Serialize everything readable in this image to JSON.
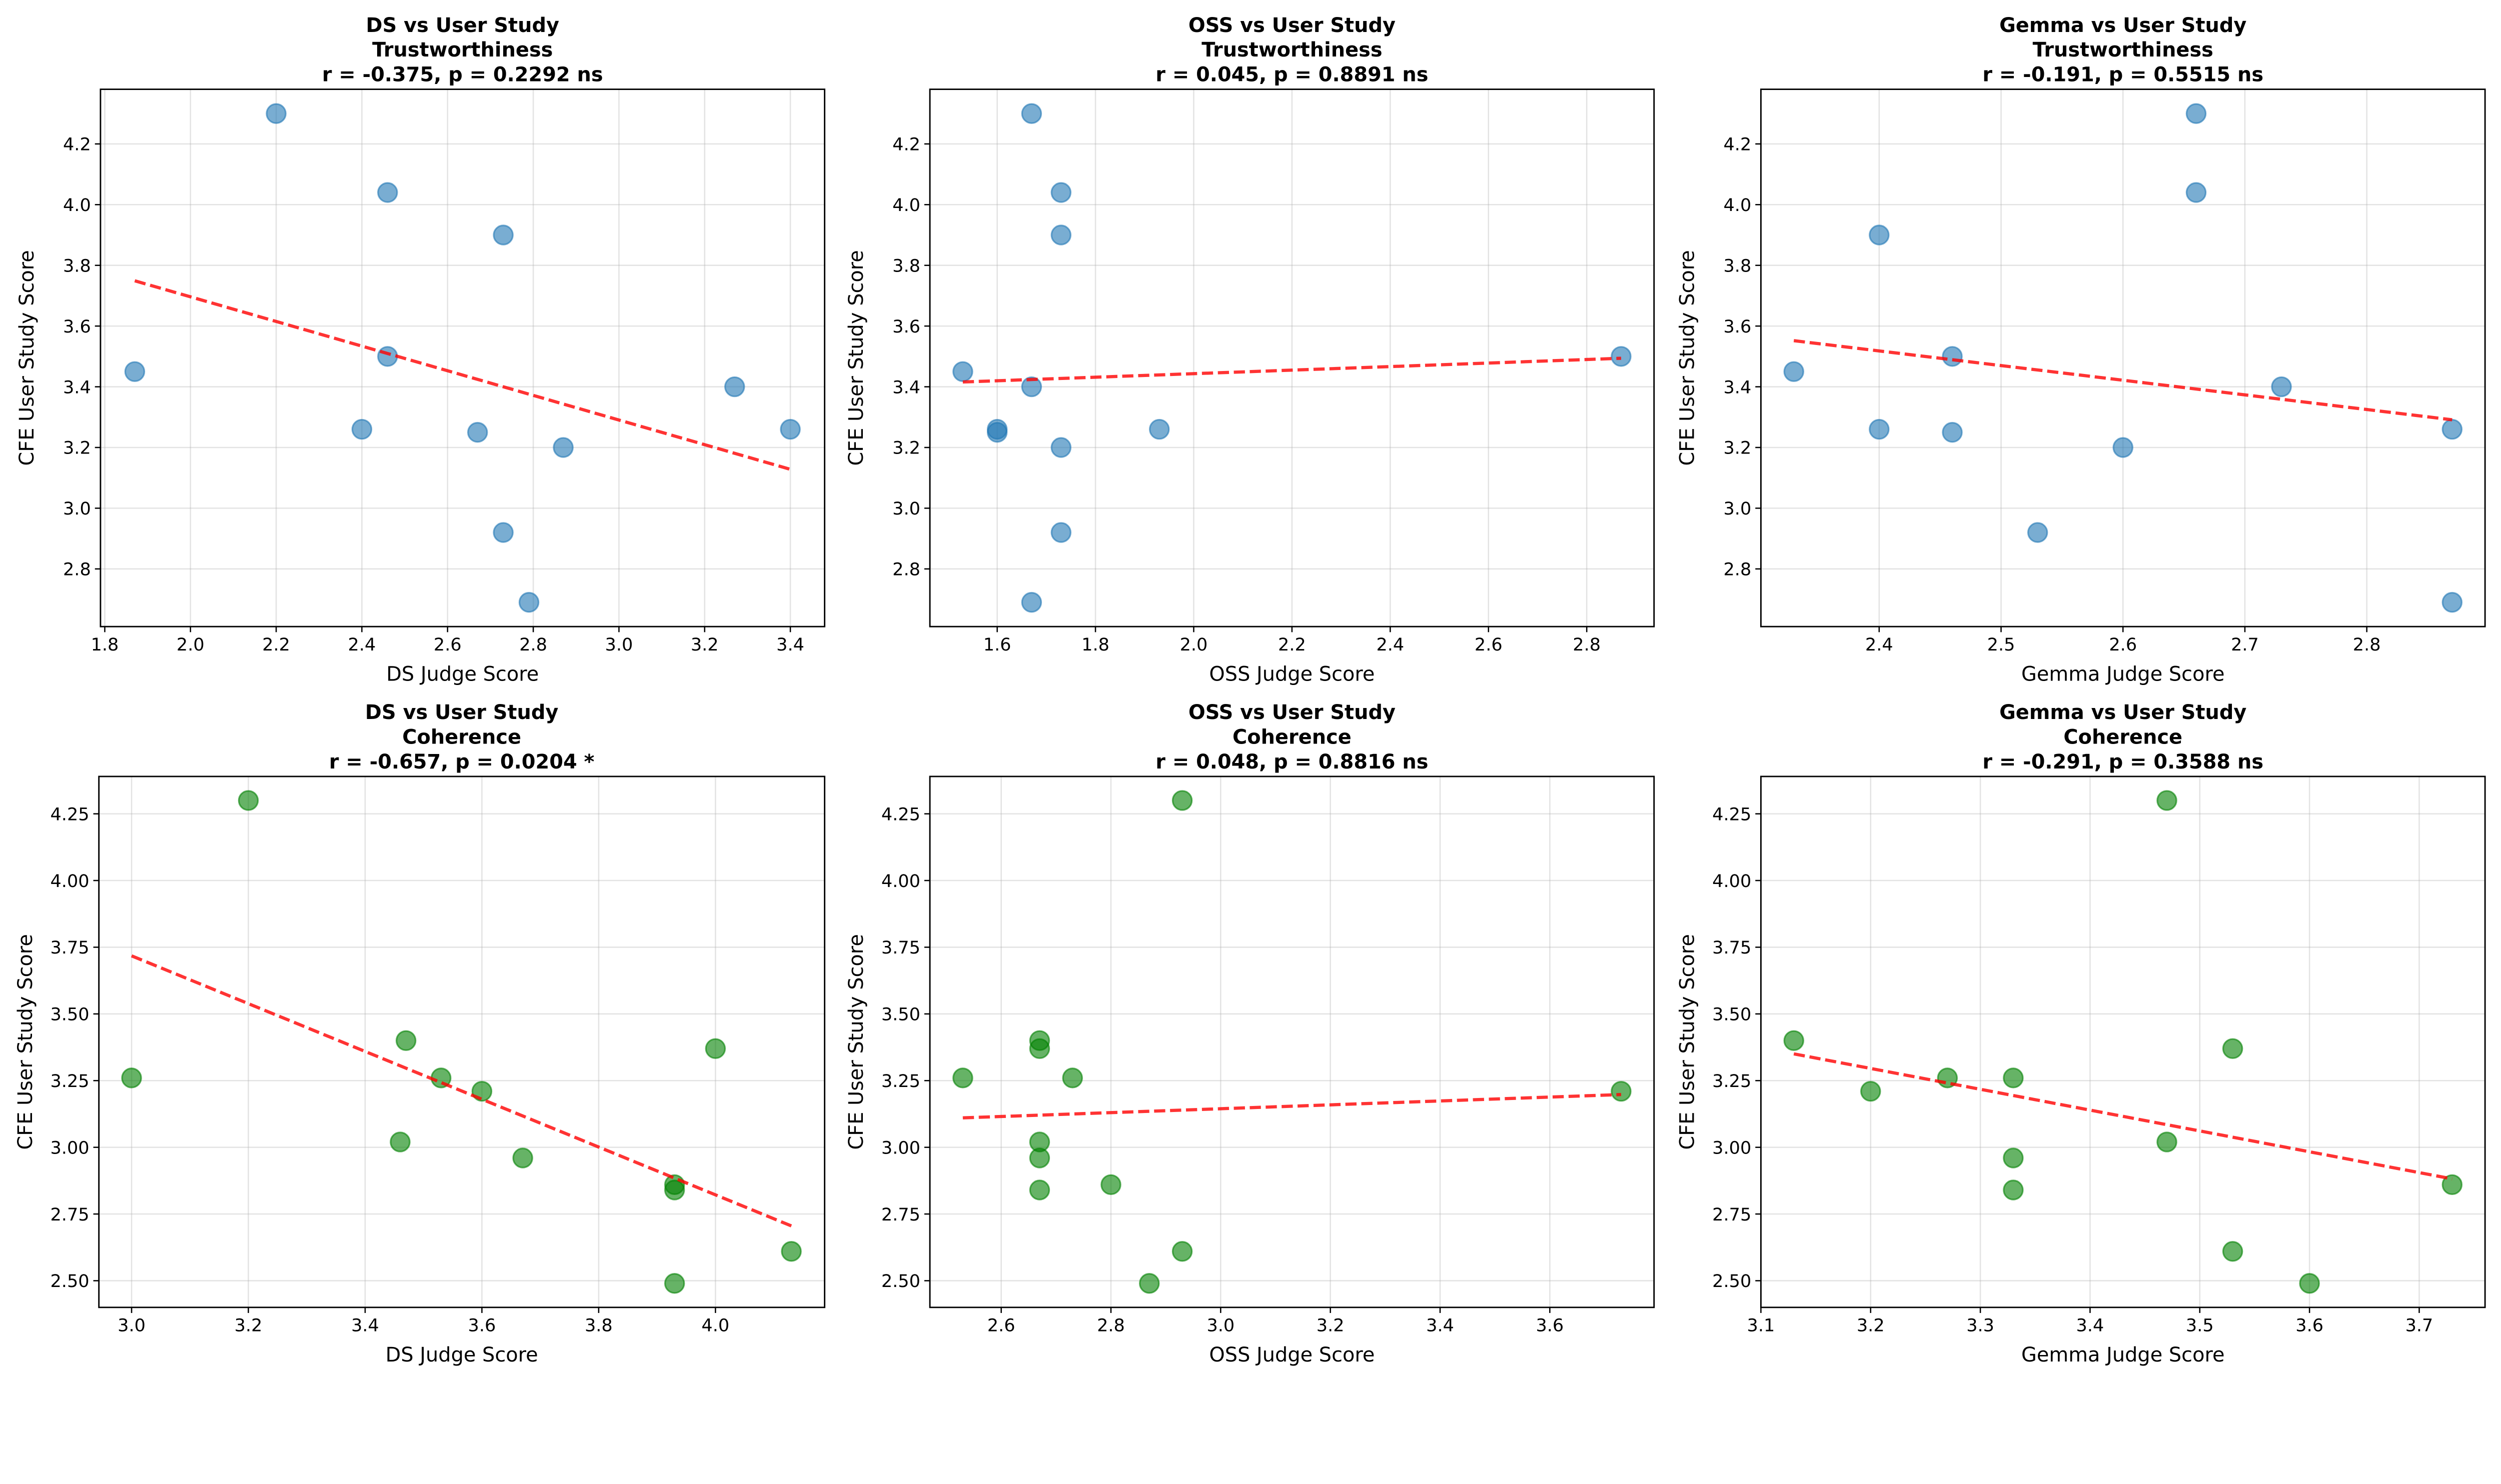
{
  "colors": {
    "trust": "#1f77b4",
    "coherence": "#008000",
    "fit_line": "#ff0000"
  },
  "chart_data": [
    {
      "type": "scatter",
      "title": [
        "DS vs User Study",
        "Trustworthiness",
        "r = -0.375, p = 0.2292 ns"
      ],
      "xlabel": "DS Judge Score",
      "ylabel": "CFE User Study Score",
      "grid": true,
      "series_color": "trust",
      "fit_line": "dashed linear regression",
      "xlim": [
        1.79,
        3.48
      ],
      "ylim": [
        2.61,
        4.38
      ],
      "xticks": [
        "1.8",
        "2.0",
        "2.2",
        "2.4",
        "2.6",
        "2.8",
        "3.0",
        "3.2",
        "3.4"
      ],
      "yticks": [
        "2.8",
        "3.0",
        "3.2",
        "3.4",
        "3.6",
        "3.8",
        "4.0",
        "4.2"
      ],
      "x": [
        2.2,
        2.46,
        2.73,
        1.87,
        2.46,
        3.27,
        2.4,
        2.67,
        3.4,
        2.87,
        2.73,
        2.79
      ],
      "y": [
        4.3,
        4.04,
        3.9,
        3.45,
        3.5,
        3.4,
        3.26,
        3.25,
        3.26,
        3.2,
        2.92,
        2.69
      ]
    },
    {
      "type": "scatter",
      "title": [
        "OSS vs User Study",
        "Trustworthiness",
        "r = 0.045, p = 0.8891 ns"
      ],
      "xlabel": "OSS Judge Score",
      "ylabel": "CFE User Study Score",
      "grid": true,
      "series_color": "trust",
      "fit_line": "dashed linear regression",
      "xlim": [
        1.463,
        2.937
      ],
      "ylim": [
        2.61,
        4.38
      ],
      "xticks": [
        "1.6",
        "1.8",
        "2.0",
        "2.2",
        "2.4",
        "2.6",
        "2.8"
      ],
      "yticks": [
        "2.8",
        "3.0",
        "3.2",
        "3.4",
        "3.6",
        "3.8",
        "4.0",
        "4.2"
      ],
      "x": [
        1.67,
        1.73,
        1.73,
        1.53,
        1.67,
        1.6,
        1.6,
        1.73,
        1.93,
        1.73,
        1.67,
        2.87
      ],
      "y": [
        4.3,
        4.04,
        3.9,
        3.45,
        3.4,
        3.26,
        3.25,
        3.2,
        3.26,
        2.92,
        2.69,
        3.5
      ]
    },
    {
      "type": "scatter",
      "title": [
        "Gemma vs User Study",
        "Trustworthiness",
        "r = -0.191, p = 0.5515 ns"
      ],
      "xlabel": "Gemma Judge Score",
      "ylabel": "CFE User Study Score",
      "grid": true,
      "series_color": "trust",
      "fit_line": "dashed linear regression",
      "xlim": [
        2.303,
        2.897
      ],
      "ylim": [
        2.61,
        4.38
      ],
      "xticks": [
        "2.4",
        "2.5",
        "2.6",
        "2.7",
        "2.8"
      ],
      "yticks": [
        "2.8",
        "3.0",
        "3.2",
        "3.4",
        "3.6",
        "3.8",
        "4.0",
        "4.2"
      ],
      "x": [
        2.66,
        2.66,
        2.4,
        2.33,
        2.46,
        2.73,
        2.4,
        2.46,
        2.87,
        2.6,
        2.53,
        2.87
      ],
      "y": [
        4.3,
        4.04,
        3.9,
        3.45,
        3.5,
        3.4,
        3.26,
        3.25,
        3.26,
        3.2,
        2.92,
        2.69
      ]
    },
    {
      "type": "scatter",
      "title": [
        "DS vs User Study",
        "Coherence",
        "r = -0.657, p = 0.0204 *"
      ],
      "xlabel": "DS Judge Score",
      "ylabel": "CFE User Study Score",
      "grid": true,
      "series_color": "coherence",
      "fit_line": "dashed linear regression",
      "xlim": [
        2.944,
        4.187
      ],
      "ylim": [
        2.4,
        4.39
      ],
      "xticks": [
        "3.0",
        "3.2",
        "3.4",
        "3.6",
        "3.8",
        "4.0"
      ],
      "yticks": [
        "2.50",
        "2.75",
        "3.00",
        "3.25",
        "3.50",
        "3.75",
        "4.00",
        "4.25"
      ],
      "x": [
        3.2,
        3.0,
        3.47,
        4.0,
        3.53,
        3.6,
        3.46,
        3.67,
        3.93,
        3.93,
        4.13,
        3.93
      ],
      "y": [
        4.3,
        3.26,
        3.4,
        3.37,
        3.26,
        3.21,
        3.02,
        2.96,
        2.86,
        2.84,
        2.61,
        2.49
      ]
    },
    {
      "type": "scatter",
      "title": [
        "OSS vs User Study",
        "Coherence",
        "r = 0.048, p = 0.8816 ns"
      ],
      "xlabel": "OSS Judge Score",
      "ylabel": "CFE User Study Score",
      "grid": true,
      "series_color": "coherence",
      "fit_line": "dashed linear regression",
      "xlim": [
        2.47,
        3.79
      ],
      "ylim": [
        2.4,
        4.39
      ],
      "xticks": [
        "2.6",
        "2.8",
        "3.0",
        "3.2",
        "3.4",
        "3.6"
      ],
      "yticks": [
        "2.50",
        "2.75",
        "3.00",
        "3.25",
        "3.50",
        "3.75",
        "4.00",
        "4.25"
      ],
      "x": [
        2.93,
        2.67,
        2.67,
        2.53,
        2.73,
        3.73,
        2.67,
        2.67,
        2.8,
        2.67,
        2.93,
        2.87
      ],
      "y": [
        4.3,
        3.4,
        3.37,
        3.26,
        3.26,
        3.21,
        3.02,
        2.96,
        2.86,
        2.84,
        2.61,
        2.49
      ]
    },
    {
      "type": "scatter",
      "title": [
        "Gemma vs User Study",
        "Coherence",
        "r = -0.291, p = 0.3588 ns"
      ],
      "xlabel": "Gemma Judge Score",
      "ylabel": "CFE User Study Score",
      "grid": true,
      "series_color": "coherence",
      "fit_line": "dashed linear regression",
      "xlim": [
        3.1,
        3.76
      ],
      "ylim": [
        2.4,
        4.39
      ],
      "xticks": [
        "3.1",
        "3.2",
        "3.3",
        "3.4",
        "3.5",
        "3.6",
        "3.7"
      ],
      "yticks": [
        "2.50",
        "2.75",
        "3.00",
        "3.25",
        "3.50",
        "3.75",
        "4.00",
        "4.25"
      ],
      "x": [
        3.47,
        3.13,
        3.53,
        3.27,
        3.33,
        3.2,
        3.47,
        3.33,
        3.73,
        3.33,
        3.53,
        3.6
      ],
      "y": [
        4.3,
        3.4,
        3.37,
        3.26,
        3.26,
        3.21,
        3.02,
        2.96,
        2.86,
        2.84,
        2.61,
        2.49
      ]
    }
  ]
}
